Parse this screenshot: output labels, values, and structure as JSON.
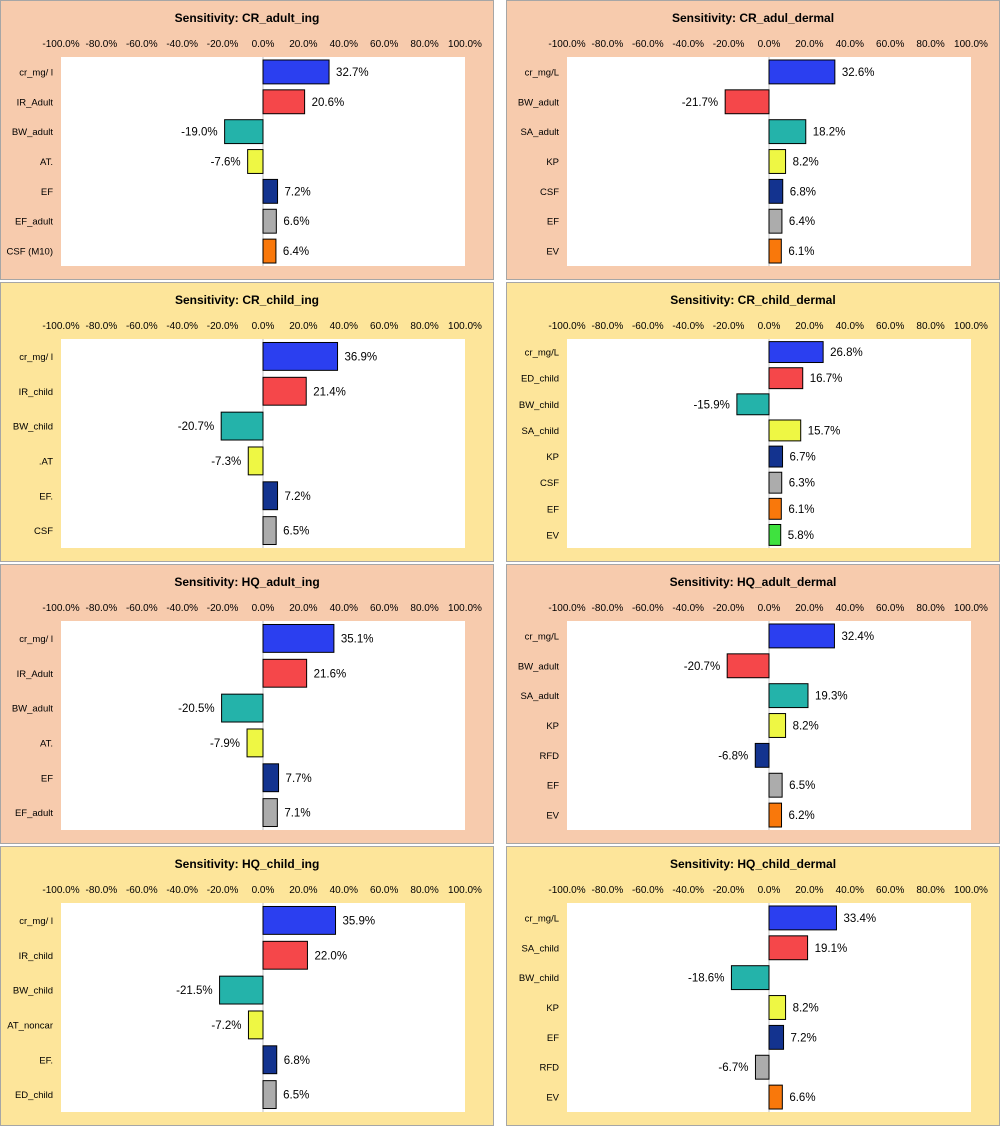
{
  "colors": {
    "peach": "#f7cbad",
    "yellow": "#fde59a",
    "blue": "#2b3ff0",
    "red": "#f5474a",
    "teal": "#24b3aa",
    "yellow_bar": "#eef744",
    "navy": "#13338f",
    "gray": "#acacac",
    "orange": "#f9780b",
    "green": "#3fe23f"
  },
  "axis_ticks": [
    "-100.0%",
    "-80.0%",
    "-60.0%",
    "-40.0%",
    "-20.0%",
    "0.0%",
    "20.0%",
    "40.0%",
    "60.0%",
    "80.0%",
    "100.0%"
  ],
  "chart_data": [
    {
      "type": "bar",
      "orientation": "horizontal",
      "title": "Sensitivity: CR_adult_ing",
      "background": "peach",
      "xlim": [
        -100,
        100
      ],
      "categories": [
        "cr_mg/ l",
        "IR_Adult",
        "BW_adult",
        "AT.",
        "EF",
        "EF_adult",
        "CSF (M10)"
      ],
      "values": [
        32.7,
        20.6,
        -19.0,
        -7.6,
        7.2,
        6.6,
        6.4
      ],
      "labels": [
        "32.7%",
        "20.6%",
        "-19.0%",
        "-7.6%",
        "7.2%",
        "6.6%",
        "6.4%"
      ],
      "bar_colors": [
        "blue",
        "red",
        "teal",
        "yellow_bar",
        "navy",
        "gray",
        "orange"
      ]
    },
    {
      "type": "bar",
      "orientation": "horizontal",
      "title": "Sensitivity: CR_adul_dermal",
      "background": "peach",
      "xlim": [
        -100,
        100
      ],
      "categories": [
        "cr_mg/L",
        "BW_adult",
        "SA_adult",
        "KP",
        "CSF",
        "EF",
        "EV"
      ],
      "values": [
        32.6,
        -21.7,
        18.2,
        8.2,
        6.8,
        6.4,
        6.1
      ],
      "labels": [
        "32.6%",
        "-21.7%",
        "18.2%",
        "8.2%",
        "6.8%",
        "6.4%",
        "6.1%"
      ],
      "bar_colors": [
        "blue",
        "red",
        "teal",
        "yellow_bar",
        "navy",
        "gray",
        "orange"
      ]
    },
    {
      "type": "bar",
      "orientation": "horizontal",
      "title": "Sensitivity: CR_child_ing",
      "background": "yellow",
      "xlim": [
        -100,
        100
      ],
      "categories": [
        "cr_mg/ l",
        "IR_child",
        "BW_child",
        ".AT",
        "EF.",
        "CSF"
      ],
      "values": [
        36.9,
        21.4,
        -20.7,
        -7.3,
        7.2,
        6.5
      ],
      "labels": [
        "36.9%",
        "21.4%",
        "-20.7%",
        "-7.3%",
        "7.2%",
        "6.5%"
      ],
      "bar_colors": [
        "blue",
        "red",
        "teal",
        "yellow_bar",
        "navy",
        "gray"
      ]
    },
    {
      "type": "bar",
      "orientation": "horizontal",
      "title": "Sensitivity: CR_child_dermal",
      "background": "yellow",
      "xlim": [
        -100,
        100
      ],
      "categories": [
        "cr_mg/L",
        "ED_child",
        "BW_child",
        "SA_child",
        "KP",
        "CSF",
        "EF",
        "EV"
      ],
      "values": [
        26.8,
        16.7,
        -15.9,
        15.7,
        6.7,
        6.3,
        6.1,
        5.8
      ],
      "labels": [
        "26.8%",
        "16.7%",
        "-15.9%",
        "15.7%",
        "6.7%",
        "6.3%",
        "6.1%",
        "5.8%"
      ],
      "bar_colors": [
        "blue",
        "red",
        "teal",
        "yellow_bar",
        "navy",
        "gray",
        "orange",
        "green"
      ]
    },
    {
      "type": "bar",
      "orientation": "horizontal",
      "title": "Sensitivity: HQ_adult_ing",
      "background": "peach",
      "xlim": [
        -100,
        100
      ],
      "categories": [
        "cr_mg/ l",
        "IR_Adult",
        "BW_adult",
        "AT.",
        "EF",
        "EF_adult"
      ],
      "values": [
        35.1,
        21.6,
        -20.5,
        -7.9,
        7.7,
        7.1
      ],
      "labels": [
        "35.1%",
        "21.6%",
        "-20.5%",
        "-7.9%",
        "7.7%",
        "7.1%"
      ],
      "bar_colors": [
        "blue",
        "red",
        "teal",
        "yellow_bar",
        "navy",
        "gray"
      ]
    },
    {
      "type": "bar",
      "orientation": "horizontal",
      "title": "Sensitivity: HQ_adult_dermal",
      "background": "peach",
      "xlim": [
        -100,
        100
      ],
      "categories": [
        "cr_mg/L",
        "BW_adult",
        "SA_adult",
        "KP",
        "RFD",
        "EF",
        "EV"
      ],
      "values": [
        32.4,
        -20.7,
        19.3,
        8.2,
        -6.8,
        6.5,
        6.2
      ],
      "labels": [
        "32.4%",
        "-20.7%",
        "19.3%",
        "8.2%",
        "-6.8%",
        "6.5%",
        "6.2%"
      ],
      "bar_colors": [
        "blue",
        "red",
        "teal",
        "yellow_bar",
        "navy",
        "gray",
        "orange"
      ]
    },
    {
      "type": "bar",
      "orientation": "horizontal",
      "title": "Sensitivity: HQ_child_ing",
      "background": "yellow",
      "xlim": [
        -100,
        100
      ],
      "categories": [
        "cr_mg/ l",
        "IR_child",
        "BW_child",
        "AT_noncar",
        "EF.",
        "ED_child"
      ],
      "values": [
        35.9,
        22.0,
        -21.5,
        -7.2,
        6.8,
        6.5
      ],
      "labels": [
        "35.9%",
        "22.0%",
        "-21.5%",
        "-7.2%",
        "6.8%",
        "6.5%"
      ],
      "bar_colors": [
        "blue",
        "red",
        "teal",
        "yellow_bar",
        "navy",
        "gray"
      ]
    },
    {
      "type": "bar",
      "orientation": "horizontal",
      "title": "Sensitivity: HQ_child_dermal",
      "background": "yellow",
      "xlim": [
        -100,
        100
      ],
      "categories": [
        "cr_mg/L",
        "SA_child",
        "BW_child",
        "KP",
        "EF",
        "RFD",
        "EV"
      ],
      "values": [
        33.4,
        19.1,
        -18.6,
        8.2,
        7.2,
        -6.7,
        6.6
      ],
      "labels": [
        "33.4%",
        "19.1%",
        "-18.6%",
        "8.2%",
        "7.2%",
        "-6.7%",
        "6.6%"
      ],
      "bar_colors": [
        "blue",
        "red",
        "teal",
        "yellow_bar",
        "navy",
        "gray",
        "orange"
      ]
    }
  ]
}
